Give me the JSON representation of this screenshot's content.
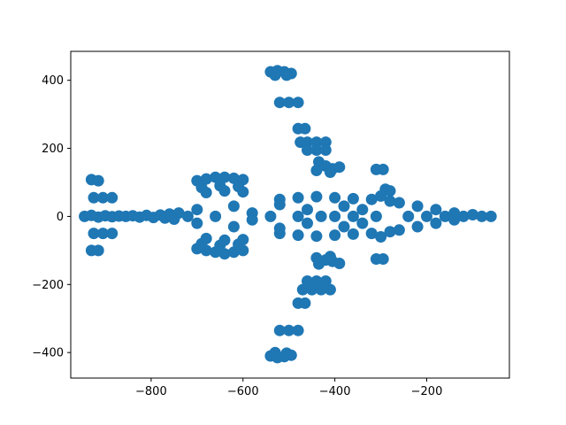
{
  "chart_data": {
    "type": "scatter",
    "title": "",
    "xlabel": "",
    "ylabel": "",
    "xlim": [
      -975,
      -20
    ],
    "ylim": [
      -475,
      485
    ],
    "x_ticks": [
      -800,
      -600,
      -400,
      -200
    ],
    "x_tick_labels": [
      "−800",
      "−600",
      "−400",
      "−200"
    ],
    "y_ticks": [
      400,
      200,
      0,
      -200,
      -400
    ],
    "y_tick_labels": [
      "400",
      "200",
      "0",
      "−200",
      "−400"
    ],
    "grid": false,
    "legend": "none",
    "marker_color": "#1f77b4",
    "series": [
      {
        "points": [
          [
            -945,
            0
          ],
          [
            -930,
            3
          ],
          [
            -915,
            -2
          ],
          [
            -900,
            2
          ],
          [
            -885,
            -1
          ],
          [
            -870,
            1
          ],
          [
            -855,
            0
          ],
          [
            -840,
            2
          ],
          [
            -825,
            -2
          ],
          [
            -810,
            3
          ],
          [
            -795,
            -3
          ],
          [
            -780,
            4
          ],
          [
            -770,
            -5
          ],
          [
            -760,
            7
          ],
          [
            -750,
            -8
          ],
          [
            -740,
            10
          ],
          [
            -930,
            108
          ],
          [
            -915,
            105
          ],
          [
            -925,
            55
          ],
          [
            -905,
            55
          ],
          [
            -885,
            55
          ],
          [
            -925,
            -50
          ],
          [
            -905,
            -50
          ],
          [
            -885,
            -50
          ],
          [
            -930,
            -100
          ],
          [
            -915,
            -100
          ],
          [
            -700,
            105
          ],
          [
            -680,
            110
          ],
          [
            -660,
            115
          ],
          [
            -640,
            115
          ],
          [
            -620,
            112
          ],
          [
            -600,
            108
          ],
          [
            -690,
            85
          ],
          [
            -650,
            90
          ],
          [
            -610,
            88
          ],
          [
            -680,
            70
          ],
          [
            -640,
            75
          ],
          [
            -600,
            72
          ],
          [
            -700,
            -95
          ],
          [
            -680,
            -100
          ],
          [
            -660,
            -105
          ],
          [
            -640,
            -110
          ],
          [
            -620,
            -105
          ],
          [
            -600,
            -100
          ],
          [
            -690,
            -80
          ],
          [
            -650,
            -85
          ],
          [
            -610,
            -82
          ],
          [
            -680,
            -65
          ],
          [
            -640,
            -70
          ],
          [
            -600,
            -68
          ],
          [
            -540,
            425
          ],
          [
            -525,
            428
          ],
          [
            -510,
            425
          ],
          [
            -495,
            420
          ],
          [
            -530,
            415
          ],
          [
            -505,
            415
          ],
          [
            -540,
            -410
          ],
          [
            -525,
            -415
          ],
          [
            -510,
            -412
          ],
          [
            -495,
            -408
          ],
          [
            -530,
            -400
          ],
          [
            -505,
            -402
          ],
          [
            -520,
            335
          ],
          [
            -500,
            335
          ],
          [
            -480,
            335
          ],
          [
            -520,
            -335
          ],
          [
            -500,
            -335
          ],
          [
            -480,
            -335
          ],
          [
            -480,
            258
          ],
          [
            -465,
            258
          ],
          [
            -480,
            -255
          ],
          [
            -465,
            -255
          ],
          [
            -475,
            218
          ],
          [
            -460,
            218
          ],
          [
            -440,
            218
          ],
          [
            -420,
            218
          ],
          [
            -470,
            -215
          ],
          [
            -450,
            -215
          ],
          [
            -430,
            -215
          ],
          [
            -410,
            -215
          ],
          [
            -460,
            195
          ],
          [
            -440,
            195
          ],
          [
            -420,
            195
          ],
          [
            -460,
            -190
          ],
          [
            -440,
            -190
          ],
          [
            -420,
            -190
          ],
          [
            -435,
            160
          ],
          [
            -420,
            148
          ],
          [
            -405,
            140
          ],
          [
            -390,
            145
          ],
          [
            -440,
            135
          ],
          [
            -410,
            130
          ],
          [
            -435,
            -140
          ],
          [
            -420,
            -128
          ],
          [
            -405,
            -132
          ],
          [
            -390,
            -138
          ],
          [
            -440,
            -122
          ],
          [
            -410,
            -118
          ],
          [
            -310,
            138
          ],
          [
            -295,
            138
          ],
          [
            -310,
            -125
          ],
          [
            -295,
            -125
          ],
          [
            -520,
            50
          ],
          [
            -480,
            55
          ],
          [
            -440,
            58
          ],
          [
            -400,
            55
          ],
          [
            -360,
            52
          ],
          [
            -320,
            50
          ],
          [
            -280,
            45
          ],
          [
            -520,
            -50
          ],
          [
            -480,
            -55
          ],
          [
            -440,
            -58
          ],
          [
            -400,
            -55
          ],
          [
            -360,
            -52
          ],
          [
            -320,
            -50
          ],
          [
            -280,
            -45
          ],
          [
            -720,
            0
          ],
          [
            -700,
            20
          ],
          [
            -700,
            -20
          ],
          [
            -660,
            0
          ],
          [
            -620,
            30
          ],
          [
            -620,
            -30
          ],
          [
            -580,
            10
          ],
          [
            -580,
            -10
          ],
          [
            -540,
            0
          ],
          [
            -520,
            35
          ],
          [
            -520,
            -35
          ],
          [
            -480,
            0
          ],
          [
            -460,
            20
          ],
          [
            -460,
            -20
          ],
          [
            -430,
            0
          ],
          [
            -400,
            0
          ],
          [
            -380,
            30
          ],
          [
            -380,
            -30
          ],
          [
            -360,
            0
          ],
          [
            -340,
            20
          ],
          [
            -340,
            -20
          ],
          [
            -310,
            0
          ],
          [
            -300,
            60
          ],
          [
            -300,
            -60
          ],
          [
            -290,
            80
          ],
          [
            -280,
            75
          ],
          [
            -260,
            40
          ],
          [
            -260,
            -40
          ],
          [
            -240,
            0
          ],
          [
            -220,
            30
          ],
          [
            -220,
            -30
          ],
          [
            -200,
            0
          ],
          [
            -180,
            20
          ],
          [
            -180,
            -20
          ],
          [
            -160,
            0
          ],
          [
            -140,
            10
          ],
          [
            -140,
            -10
          ],
          [
            -120,
            0
          ],
          [
            -100,
            5
          ],
          [
            -80,
            0
          ],
          [
            -60,
            0
          ]
        ]
      }
    ]
  }
}
